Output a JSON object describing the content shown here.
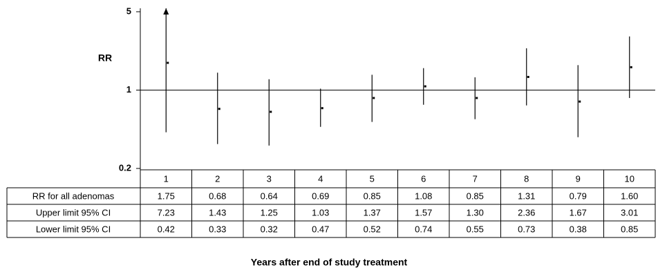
{
  "chart_data": {
    "type": "errorbar",
    "y_label": "RR",
    "x_label": "Years after end of study treatment",
    "categories": [
      "1",
      "2",
      "3",
      "4",
      "5",
      "6",
      "7",
      "8",
      "9",
      "10"
    ],
    "series": [
      {
        "name": "RR for all adenomas",
        "values": [
          1.75,
          0.68,
          0.64,
          0.69,
          0.85,
          1.08,
          0.85,
          1.31,
          0.79,
          1.6
        ],
        "value_labels": [
          "1.75",
          "0.68",
          "0.64",
          "0.69",
          "0.85",
          "1.08",
          "0.85",
          "1.31",
          "0.79",
          "1.60"
        ]
      },
      {
        "name": "Upper limit 95% CI",
        "values": [
          7.23,
          1.43,
          1.25,
          1.03,
          1.37,
          1.57,
          1.3,
          2.36,
          1.67,
          3.01
        ],
        "value_labels": [
          "7.23",
          "1.43",
          "1.25",
          "1.03",
          "1.37",
          "1.57",
          "1.30",
          "2.36",
          "1.67",
          "3.01"
        ]
      },
      {
        "name": "Lower limit 95% CI",
        "values": [
          0.42,
          0.33,
          0.32,
          0.47,
          0.52,
          0.74,
          0.55,
          0.73,
          0.38,
          0.85
        ],
        "value_labels": [
          "0.42",
          "0.33",
          "0.32",
          "0.47",
          "0.52",
          "0.74",
          "0.55",
          "0.73",
          "0.38",
          "0.85"
        ]
      }
    ],
    "ylim": [
      0.2,
      5
    ],
    "yticks": [
      0.2,
      1,
      5
    ],
    "log_scale": true,
    "reference_line": 1,
    "color": "#000000"
  }
}
